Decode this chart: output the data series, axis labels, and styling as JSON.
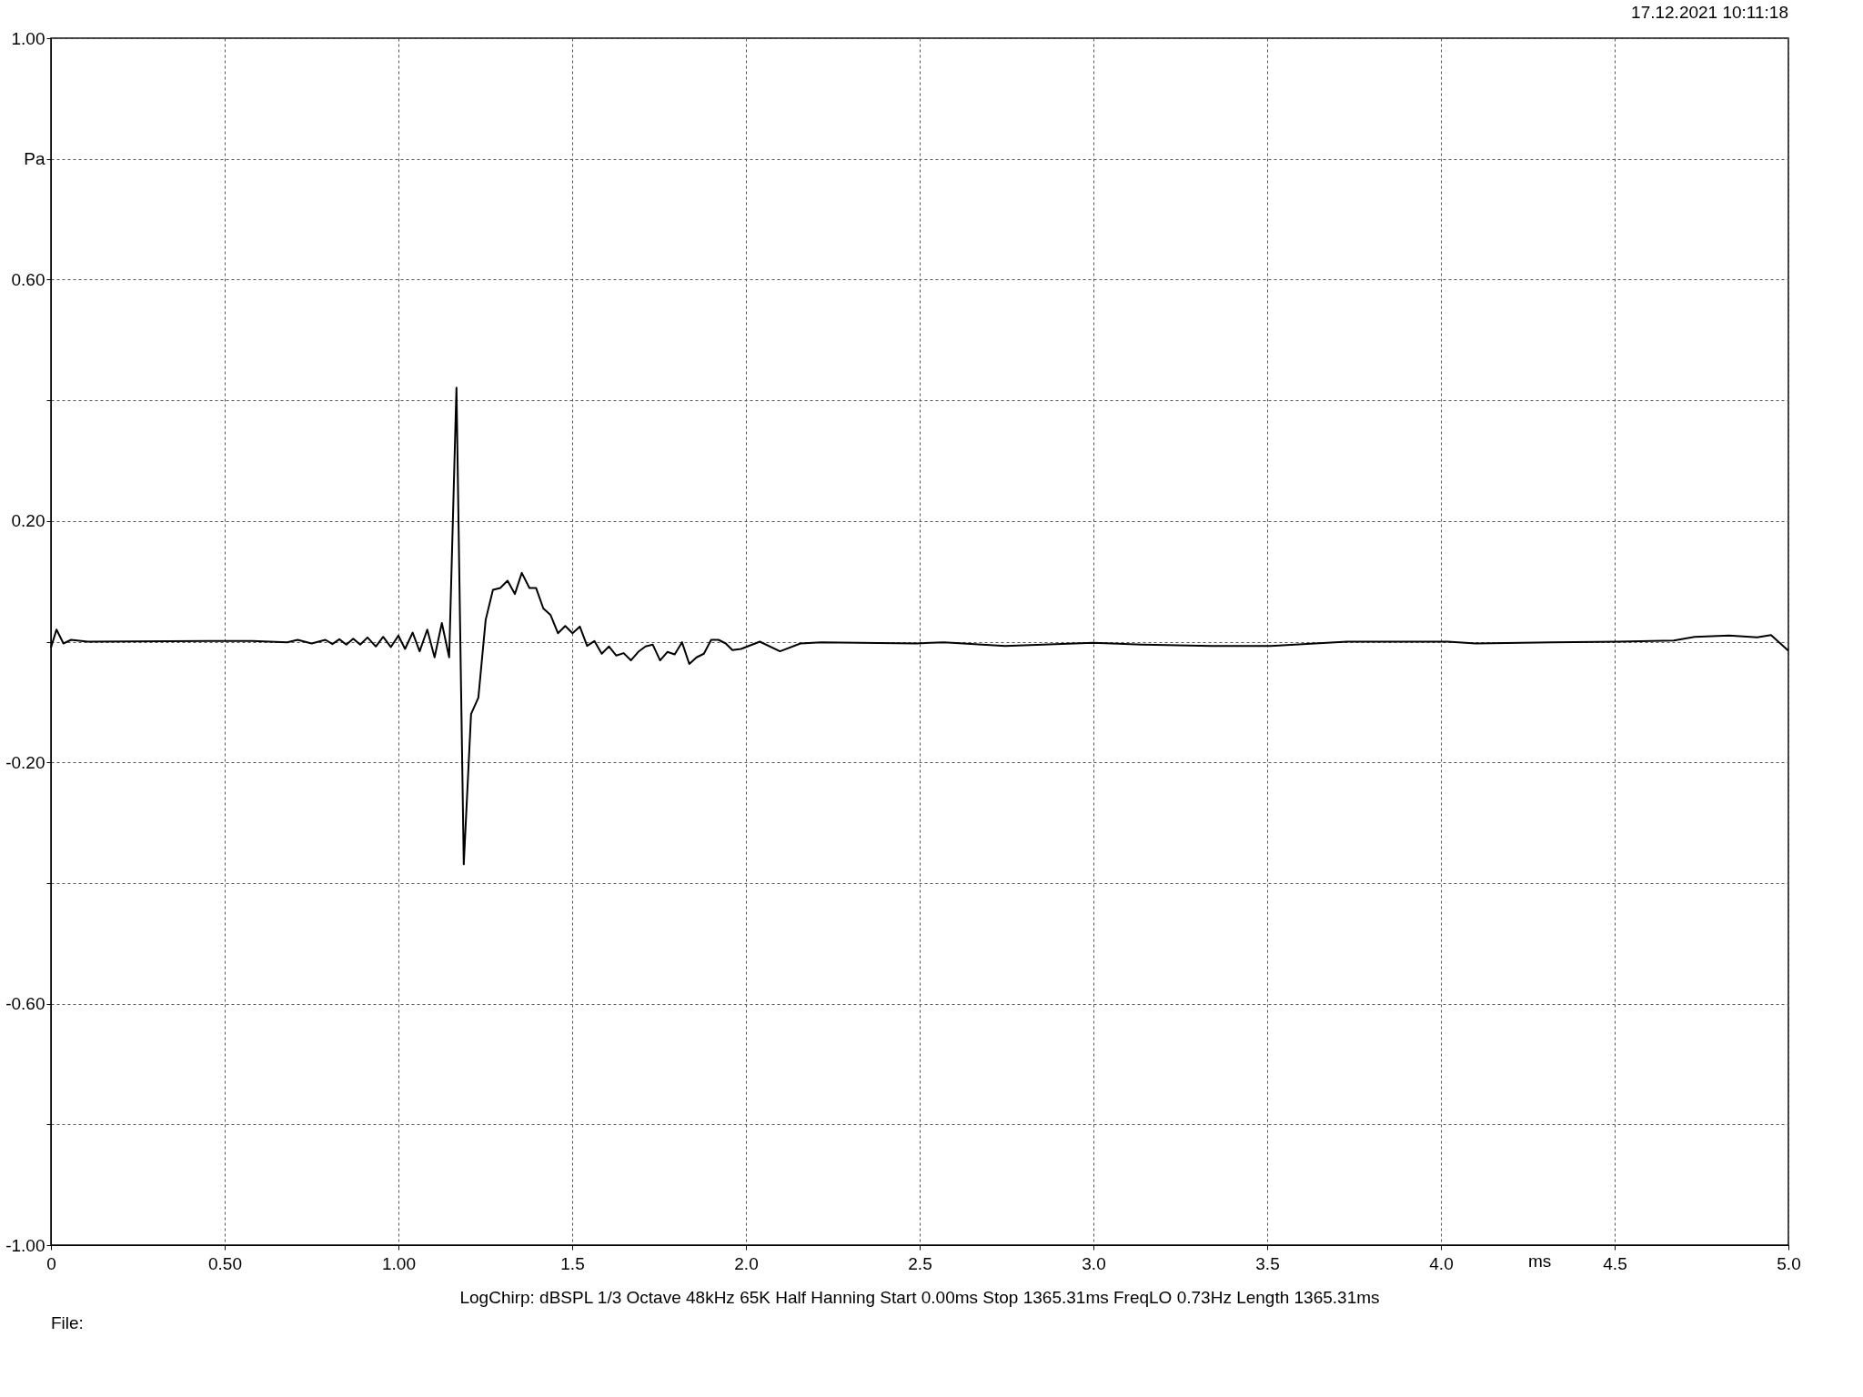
{
  "chart_data": {
    "type": "line",
    "xlabel": "ms",
    "annotations": [
      "17.12.2021 10:11:18",
      "LogChirp:  dBSPL   1/3 Octave   48kHz   65K   Half Hanning   Start 0.00ms   Stop 1365.31ms   FreqLO 0.73Hz   Length 1365.31ms",
      "File:"
    ],
    "xlim": [
      0,
      5
    ],
    "ylim": [
      -1,
      1
    ],
    "xticks": [
      0,
      {
        "value": 0.5,
        "label": "0.50"
      },
      {
        "value": 1,
        "label": "1.00"
      },
      1.5,
      {
        "value": 2,
        "label": "2.0"
      },
      2.5,
      {
        "value": 3,
        "label": "3.0"
      },
      3.5,
      {
        "value": 4,
        "label": "4.0"
      },
      4.5,
      {
        "value": 5,
        "label": "5.0"
      }
    ],
    "yticks": [
      {
        "value": -1,
        "label": "-1.00"
      },
      {
        "value": -0.8,
        "label": null
      },
      {
        "value": -0.6,
        "label": "-0.60"
      },
      {
        "value": -0.4,
        "label": null
      },
      {
        "value": -0.2,
        "label": "-0.20"
      },
      {
        "value": 0,
        "label": null
      },
      {
        "value": 0.2,
        "label": "0.20"
      },
      {
        "value": 0.4,
        "label": null
      },
      {
        "value": 0.6,
        "label": "0.60"
      },
      {
        "value": 0.8,
        "label": "Pa"
      },
      {
        "value": 1,
        "label": "1.00"
      }
    ],
    "grid": true,
    "marker": "none",
    "line_style": "solid",
    "series": [
      {
        "color": "#000000",
        "x": [
          0.0,
          0.016,
          0.036,
          0.058,
          0.106,
          0.455,
          0.58,
          0.68,
          0.71,
          0.75,
          0.79,
          0.81,
          0.83,
          0.85,
          0.87,
          0.89,
          0.911,
          0.935,
          0.956,
          0.978,
          1.0,
          1.019,
          1.041,
          1.061,
          1.083,
          1.104,
          1.125,
          1.146,
          1.167,
          1.188,
          1.209,
          1.23,
          1.251,
          1.272,
          1.293,
          1.314,
          1.335,
          1.355,
          1.377,
          1.396,
          1.417,
          1.438,
          1.459,
          1.48,
          1.501,
          1.522,
          1.543,
          1.564,
          1.585,
          1.606,
          1.627,
          1.648,
          1.669,
          1.69,
          1.711,
          1.732,
          1.753,
          1.774,
          1.795,
          1.816,
          1.837,
          1.858,
          1.879,
          1.9,
          1.921,
          1.942,
          1.961,
          1.986,
          2.04,
          2.098,
          2.157,
          2.216,
          2.49,
          2.57,
          2.746,
          3.0,
          3.14,
          3.34,
          3.51,
          3.73,
          4.02,
          4.1,
          4.32,
          4.51,
          4.67,
          4.73,
          4.83,
          4.91,
          4.95,
          5.0
        ],
        "values": [
          -0.01,
          0.02,
          -0.003,
          0.003,
          0.0,
          0.001,
          0.001,
          -0.001,
          0.003,
          -0.003,
          0.003,
          -0.004,
          0.004,
          -0.005,
          0.005,
          -0.005,
          0.007,
          -0.008,
          0.008,
          -0.009,
          0.01,
          -0.012,
          0.015,
          -0.016,
          0.02,
          -0.026,
          0.031,
          -0.026,
          0.421,
          -0.369,
          -0.12,
          -0.093,
          0.036,
          0.086,
          0.089,
          0.101,
          0.079,
          0.114,
          0.089,
          0.089,
          0.055,
          0.044,
          0.014,
          0.026,
          0.014,
          0.025,
          -0.007,
          0.001,
          -0.02,
          -0.008,
          -0.023,
          -0.019,
          -0.031,
          -0.017,
          -0.008,
          -0.005,
          -0.031,
          -0.017,
          -0.021,
          -0.001,
          -0.037,
          -0.026,
          -0.02,
          0.003,
          0.003,
          -0.003,
          -0.014,
          -0.012,
          0.0,
          -0.016,
          -0.003,
          -0.001,
          -0.003,
          -0.001,
          -0.007,
          -0.002,
          -0.005,
          -0.007,
          -0.007,
          0.0,
          0.0,
          -0.003,
          -0.001,
          0.0,
          0.002,
          0.008,
          0.01,
          0.007,
          0.011,
          -0.015
        ]
      }
    ]
  }
}
